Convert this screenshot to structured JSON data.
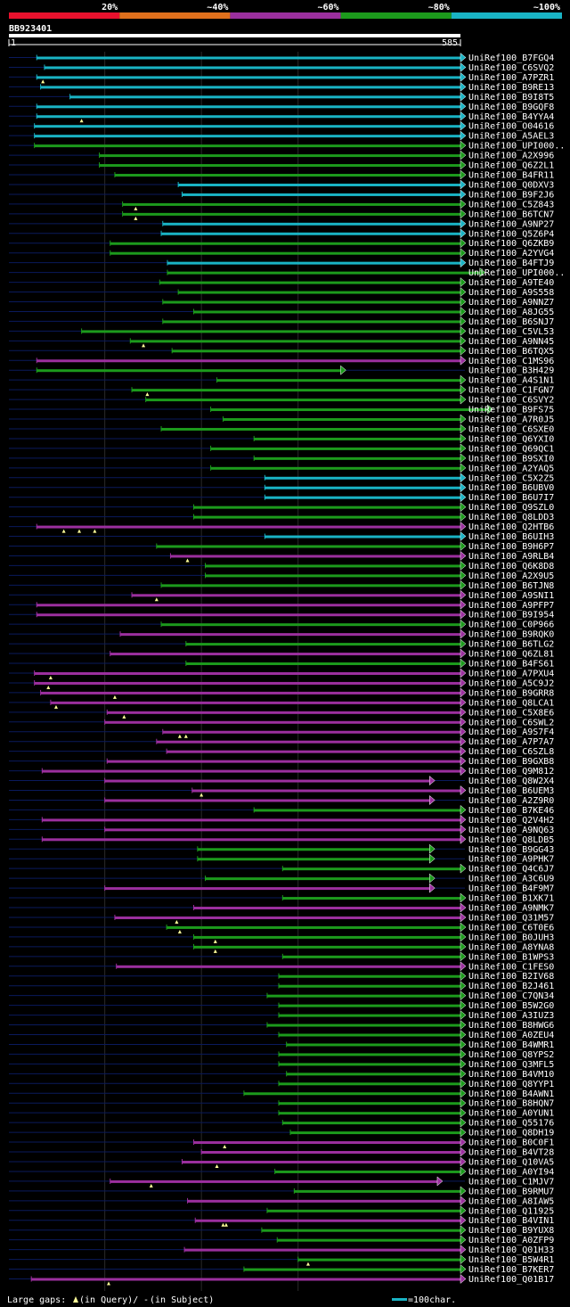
{
  "chart_data": {
    "type": "alignment",
    "title": "BB923401",
    "query_length": 585,
    "axis": {
      "start_label": "1",
      "end_label": "585",
      "xlim": [
        1,
        585
      ],
      "gridlines": [
        125,
        250,
        375
      ]
    },
    "legend": [
      {
        "label": "20%",
        "color": "#e8112d"
      },
      {
        "label": "~40%",
        "color": "#e0701c"
      },
      {
        "label": "~60%",
        "color": "#9b2f9e"
      },
      {
        "label": "~80%",
        "color": "#1c9a1c"
      },
      {
        "label": "~100%",
        "color": "#19b3c4"
      }
    ],
    "footer": {
      "gaps_label": "Large gaps:",
      "in_query": "(in Query)/",
      "dash": "-",
      "in_subject": "(in Subject)",
      "scale_label": "=100char."
    },
    "hits": [
      {
        "id": "UniRef100_B7FGQ4",
        "start": 37,
        "end": 585,
        "identity": 100,
        "q_gaps": []
      },
      {
        "id": "UniRef100_C6SVQ2",
        "start": 47,
        "end": 585,
        "identity": 100,
        "q_gaps": []
      },
      {
        "id": "UniRef100_A7PZR1",
        "start": 37,
        "end": 585,
        "identity": 100,
        "q_gaps": [
          45
        ]
      },
      {
        "id": "UniRef100_B9RE13",
        "start": 42,
        "end": 585,
        "identity": 100,
        "q_gaps": []
      },
      {
        "id": "UniRef100_B9I8T5",
        "start": 80,
        "end": 585,
        "identity": 100,
        "q_gaps": []
      },
      {
        "id": "UniRef100_B9GQF8",
        "start": 37,
        "end": 585,
        "identity": 100,
        "q_gaps": []
      },
      {
        "id": "UniRef100_B4YYA4",
        "start": 37,
        "end": 585,
        "identity": 100,
        "q_gaps": [
          95
        ]
      },
      {
        "id": "UniRef100_O04616",
        "start": 34,
        "end": 585,
        "identity": 100,
        "q_gaps": []
      },
      {
        "id": "UniRef100_A5AEL3",
        "start": 34,
        "end": 585,
        "identity": 100,
        "q_gaps": []
      },
      {
        "id": "UniRef100_UPI000..",
        "start": 34,
        "end": 585,
        "identity": 80,
        "q_gaps": []
      },
      {
        "id": "UniRef100_A2X996",
        "start": 118,
        "end": 585,
        "identity": 80,
        "q_gaps": []
      },
      {
        "id": "UniRef100_Q6Z2L1",
        "start": 118,
        "end": 585,
        "identity": 80,
        "q_gaps": []
      },
      {
        "id": "UniRef100_B4FR11",
        "start": 138,
        "end": 585,
        "identity": 80,
        "q_gaps": []
      },
      {
        "id": "UniRef100_Q0DXV3",
        "start": 220,
        "end": 585,
        "identity": 100,
        "q_gaps": []
      },
      {
        "id": "UniRef100_B9F2J6",
        "start": 225,
        "end": 585,
        "identity": 100,
        "q_gaps": []
      },
      {
        "id": "UniRef100_C5Z843",
        "start": 148,
        "end": 585,
        "identity": 80,
        "q_gaps": [
          165
        ]
      },
      {
        "id": "UniRef100_B6TCN7",
        "start": 148,
        "end": 585,
        "identity": 80,
        "q_gaps": [
          165
        ]
      },
      {
        "id": "UniRef100_A9NP27",
        "start": 200,
        "end": 585,
        "identity": 100,
        "q_gaps": []
      },
      {
        "id": "UniRef100_Q5Z6P4",
        "start": 198,
        "end": 585,
        "identity": 100,
        "q_gaps": []
      },
      {
        "id": "UniRef100_Q6ZKB9",
        "start": 132,
        "end": 585,
        "identity": 80,
        "q_gaps": []
      },
      {
        "id": "UniRef100_A2YVG4",
        "start": 132,
        "end": 585,
        "identity": 80,
        "q_gaps": []
      },
      {
        "id": "UniRef100_B4FTJ9",
        "start": 206,
        "end": 585,
        "identity": 100,
        "q_gaps": []
      },
      {
        "id": "UniRef100_UPI000..",
        "start": 206,
        "end": 610,
        "identity": 80,
        "q_gaps": []
      },
      {
        "id": "UniRef100_A9TE40",
        "start": 196,
        "end": 585,
        "identity": 80,
        "q_gaps": []
      },
      {
        "id": "UniRef100_A9S558",
        "start": 220,
        "end": 585,
        "identity": 80,
        "q_gaps": []
      },
      {
        "id": "UniRef100_A9NNZ7",
        "start": 200,
        "end": 585,
        "identity": 80,
        "q_gaps": []
      },
      {
        "id": "UniRef100_A8JG55",
        "start": 240,
        "end": 585,
        "identity": 80,
        "q_gaps": []
      },
      {
        "id": "UniRef100_B6SNJ7",
        "start": 200,
        "end": 585,
        "identity": 80,
        "q_gaps": []
      },
      {
        "id": "UniRef100_C5VL53",
        "start": 95,
        "end": 585,
        "identity": 80,
        "q_gaps": []
      },
      {
        "id": "UniRef100_A9NN45",
        "start": 158,
        "end": 585,
        "identity": 80,
        "q_gaps": [
          175
        ]
      },
      {
        "id": "UniRef100_B6TQX5",
        "start": 212,
        "end": 585,
        "identity": 80,
        "q_gaps": []
      },
      {
        "id": "UniRef100_C1MS96",
        "start": 37,
        "end": 585,
        "identity": 60,
        "q_gaps": []
      },
      {
        "id": "UniRef100_B3H429",
        "start": 37,
        "end": 430,
        "identity": 80,
        "q_gaps": []
      },
      {
        "id": "UniRef100_A4S1N1",
        "start": 270,
        "end": 585,
        "identity": 80,
        "q_gaps": []
      },
      {
        "id": "UniRef100_C1FGN7",
        "start": 160,
        "end": 585,
        "identity": 80,
        "q_gaps": [
          180
        ]
      },
      {
        "id": "UniRef100_C6SVY2",
        "start": 178,
        "end": 585,
        "identity": 80,
        "q_gaps": []
      },
      {
        "id": "UniRef100_B9FS75",
        "start": 262,
        "end": 620,
        "identity": 80,
        "q_gaps": []
      },
      {
        "id": "UniRef100_A7R0J5",
        "start": 278,
        "end": 585,
        "identity": 80,
        "q_gaps": []
      },
      {
        "id": "UniRef100_C6SXE0",
        "start": 198,
        "end": 585,
        "identity": 80,
        "q_gaps": []
      },
      {
        "id": "UniRef100_Q6YXI0",
        "start": 318,
        "end": 585,
        "identity": 80,
        "q_gaps": []
      },
      {
        "id": "UniRef100_Q69QC1",
        "start": 262,
        "end": 585,
        "identity": 80,
        "q_gaps": []
      },
      {
        "id": "UniRef100_B9SXI0",
        "start": 318,
        "end": 585,
        "identity": 80,
        "q_gaps": []
      },
      {
        "id": "UniRef100_A2YAQ5",
        "start": 262,
        "end": 585,
        "identity": 80,
        "q_gaps": []
      },
      {
        "id": "UniRef100_C5X2Z5",
        "start": 332,
        "end": 585,
        "identity": 100,
        "q_gaps": []
      },
      {
        "id": "UniRef100_B6UBV0",
        "start": 332,
        "end": 585,
        "identity": 100,
        "q_gaps": []
      },
      {
        "id": "UniRef100_B6U7I7",
        "start": 332,
        "end": 585,
        "identity": 100,
        "q_gaps": []
      },
      {
        "id": "UniRef100_Q9SZL0",
        "start": 240,
        "end": 585,
        "identity": 80,
        "q_gaps": []
      },
      {
        "id": "UniRef100_Q8LDD3",
        "start": 240,
        "end": 585,
        "identity": 80,
        "q_gaps": []
      },
      {
        "id": "UniRef100_Q2HTB6",
        "start": 37,
        "end": 585,
        "identity": 60,
        "q_gaps": [
          72,
          92,
          112
        ]
      },
      {
        "id": "UniRef100_B6UIH3",
        "start": 332,
        "end": 585,
        "identity": 100,
        "q_gaps": []
      },
      {
        "id": "UniRef100_B9H6P7",
        "start": 192,
        "end": 585,
        "identity": 80,
        "q_gaps": []
      },
      {
        "id": "UniRef100_A9RLB4",
        "start": 210,
        "end": 585,
        "identity": 60,
        "q_gaps": [
          232
        ]
      },
      {
        "id": "UniRef100_Q6K8D8",
        "start": 255,
        "end": 585,
        "identity": 80,
        "q_gaps": []
      },
      {
        "id": "UniRef100_A2X9U5",
        "start": 255,
        "end": 585,
        "identity": 80,
        "q_gaps": []
      },
      {
        "id": "UniRef100_B6TJN8",
        "start": 198,
        "end": 585,
        "identity": 80,
        "q_gaps": []
      },
      {
        "id": "UniRef100_A9SNI1",
        "start": 160,
        "end": 585,
        "identity": 60,
        "q_gaps": [
          192
        ]
      },
      {
        "id": "UniRef100_A9PFP7",
        "start": 37,
        "end": 585,
        "identity": 60,
        "q_gaps": []
      },
      {
        "id": "UniRef100_B9I954",
        "start": 37,
        "end": 585,
        "identity": 60,
        "q_gaps": []
      },
      {
        "id": "UniRef100_C0P966",
        "start": 198,
        "end": 585,
        "identity": 80,
        "q_gaps": []
      },
      {
        "id": "UniRef100_B9RQK0",
        "start": 145,
        "end": 585,
        "identity": 60,
        "q_gaps": []
      },
      {
        "id": "UniRef100_B6TLG2",
        "start": 230,
        "end": 585,
        "identity": 80,
        "q_gaps": []
      },
      {
        "id": "UniRef100_Q6ZL81",
        "start": 132,
        "end": 585,
        "identity": 60,
        "q_gaps": []
      },
      {
        "id": "UniRef100_B4FS61",
        "start": 230,
        "end": 585,
        "identity": 80,
        "q_gaps": []
      },
      {
        "id": "UniRef100_A7PXU4",
        "start": 34,
        "end": 585,
        "identity": 60,
        "q_gaps": [
          55
        ]
      },
      {
        "id": "UniRef100_A5C9J2",
        "start": 34,
        "end": 585,
        "identity": 60,
        "q_gaps": [
          52
        ]
      },
      {
        "id": "UniRef100_B9GRR8",
        "start": 42,
        "end": 585,
        "identity": 60,
        "q_gaps": [
          138
        ]
      },
      {
        "id": "UniRef100_Q8LCA1",
        "start": 55,
        "end": 585,
        "identity": 60,
        "q_gaps": [
          62
        ]
      },
      {
        "id": "UniRef100_C5X8E6",
        "start": 128,
        "end": 585,
        "identity": 60,
        "q_gaps": [
          150
        ]
      },
      {
        "id": "UniRef100_C6SWL2",
        "start": 125,
        "end": 585,
        "identity": 60,
        "q_gaps": []
      },
      {
        "id": "UniRef100_A9S7F4",
        "start": 200,
        "end": 585,
        "identity": 60,
        "q_gaps": [
          222,
          230
        ]
      },
      {
        "id": "UniRef100_A7P7A7",
        "start": 192,
        "end": 585,
        "identity": 60,
        "q_gaps": []
      },
      {
        "id": "UniRef100_C6SZL8",
        "start": 205,
        "end": 585,
        "identity": 60,
        "q_gaps": []
      },
      {
        "id": "UniRef100_B9GXB8",
        "start": 128,
        "end": 585,
        "identity": 60,
        "q_gaps": []
      },
      {
        "id": "UniRef100_Q9M812",
        "start": 44,
        "end": 585,
        "identity": 60,
        "q_gaps": []
      },
      {
        "id": "UniRef100_Q8W2X4",
        "start": 125,
        "end": 545,
        "identity": 60,
        "q_gaps": []
      },
      {
        "id": "UniRef100_B6UEM3",
        "start": 238,
        "end": 585,
        "identity": 60,
        "q_gaps": [
          250
        ]
      },
      {
        "id": "UniRef100_A2Z9R0",
        "start": 125,
        "end": 545,
        "identity": 60,
        "q_gaps": []
      },
      {
        "id": "UniRef100_B7KE46",
        "start": 318,
        "end": 585,
        "identity": 80,
        "q_gaps": []
      },
      {
        "id": "UniRef100_Q2V4H2",
        "start": 44,
        "end": 585,
        "identity": 60,
        "q_gaps": []
      },
      {
        "id": "UniRef100_A9NQ63",
        "start": 125,
        "end": 585,
        "identity": 60,
        "q_gaps": []
      },
      {
        "id": "UniRef100_Q8LDB5",
        "start": 44,
        "end": 585,
        "identity": 60,
        "q_gaps": []
      },
      {
        "id": "UniRef100_B9GG43",
        "start": 245,
        "end": 545,
        "identity": 80,
        "q_gaps": []
      },
      {
        "id": "UniRef100_A9PHK7",
        "start": 245,
        "end": 545,
        "identity": 80,
        "q_gaps": []
      },
      {
        "id": "UniRef100_Q4C6J7",
        "start": 355,
        "end": 585,
        "identity": 80,
        "q_gaps": []
      },
      {
        "id": "UniRef100_A3C6U9",
        "start": 255,
        "end": 545,
        "identity": 80,
        "q_gaps": []
      },
      {
        "id": "UniRef100_B4F9M7",
        "start": 125,
        "end": 545,
        "identity": 60,
        "q_gaps": []
      },
      {
        "id": "UniRef100_B1XK71",
        "start": 355,
        "end": 585,
        "identity": 80,
        "q_gaps": []
      },
      {
        "id": "UniRef100_A9NMK7",
        "start": 240,
        "end": 585,
        "identity": 60,
        "q_gaps": []
      },
      {
        "id": "UniRef100_Q31M57",
        "start": 138,
        "end": 585,
        "identity": 60,
        "q_gaps": [
          218
        ]
      },
      {
        "id": "UniRef100_C6T0E6",
        "start": 205,
        "end": 585,
        "identity": 80,
        "q_gaps": [
          222
        ]
      },
      {
        "id": "UniRef100_B0JUH3",
        "start": 240,
        "end": 585,
        "identity": 80,
        "q_gaps": [
          268
        ]
      },
      {
        "id": "UniRef100_A8YNA8",
        "start": 240,
        "end": 585,
        "identity": 80,
        "q_gaps": [
          268
        ]
      },
      {
        "id": "UniRef100_B1WPS3",
        "start": 355,
        "end": 585,
        "identity": 80,
        "q_gaps": []
      },
      {
        "id": "UniRef100_C1FES0",
        "start": 140,
        "end": 585,
        "identity": 60,
        "q_gaps": []
      },
      {
        "id": "UniRef100_B2IV68",
        "start": 350,
        "end": 585,
        "identity": 80,
        "q_gaps": []
      },
      {
        "id": "UniRef100_B2J461",
        "start": 350,
        "end": 585,
        "identity": 80,
        "q_gaps": []
      },
      {
        "id": "UniRef100_C7QN34",
        "start": 335,
        "end": 585,
        "identity": 80,
        "q_gaps": []
      },
      {
        "id": "UniRef100_B5W2G0",
        "start": 350,
        "end": 585,
        "identity": 80,
        "q_gaps": []
      },
      {
        "id": "UniRef100_A3IUZ3",
        "start": 350,
        "end": 585,
        "identity": 80,
        "q_gaps": []
      },
      {
        "id": "UniRef100_B8HWG6",
        "start": 335,
        "end": 585,
        "identity": 80,
        "q_gaps": []
      },
      {
        "id": "UniRef100_A0ZEU4",
        "start": 350,
        "end": 585,
        "identity": 80,
        "q_gaps": []
      },
      {
        "id": "UniRef100_B4WMR1",
        "start": 360,
        "end": 585,
        "identity": 80,
        "q_gaps": []
      },
      {
        "id": "UniRef100_Q8YPS2",
        "start": 350,
        "end": 585,
        "identity": 80,
        "q_gaps": []
      },
      {
        "id": "UniRef100_Q3MFL5",
        "start": 350,
        "end": 585,
        "identity": 80,
        "q_gaps": []
      },
      {
        "id": "UniRef100_B4VM10",
        "start": 360,
        "end": 585,
        "identity": 80,
        "q_gaps": []
      },
      {
        "id": "UniRef100_Q8YYP1",
        "start": 350,
        "end": 585,
        "identity": 80,
        "q_gaps": []
      },
      {
        "id": "UniRef100_B4AWN1",
        "start": 305,
        "end": 585,
        "identity": 80,
        "q_gaps": []
      },
      {
        "id": "UniRef100_B8HQN7",
        "start": 350,
        "end": 585,
        "identity": 80,
        "q_gaps": []
      },
      {
        "id": "UniRef100_A0YUN1",
        "start": 350,
        "end": 585,
        "identity": 80,
        "q_gaps": []
      },
      {
        "id": "UniRef100_Q55176",
        "start": 355,
        "end": 585,
        "identity": 80,
        "q_gaps": []
      },
      {
        "id": "UniRef100_Q8DH19",
        "start": 365,
        "end": 585,
        "identity": 80,
        "q_gaps": []
      },
      {
        "id": "UniRef100_B0C0F1",
        "start": 240,
        "end": 585,
        "identity": 60,
        "q_gaps": [
          280
        ]
      },
      {
        "id": "UniRef100_B4VT28",
        "start": 250,
        "end": 585,
        "identity": 60,
        "q_gaps": []
      },
      {
        "id": "UniRef100_Q10VA5",
        "start": 225,
        "end": 585,
        "identity": 60,
        "q_gaps": [
          270
        ]
      },
      {
        "id": "UniRef100_A0YI94",
        "start": 345,
        "end": 585,
        "identity": 80,
        "q_gaps": []
      },
      {
        "id": "UniRef100_C1MJV7",
        "start": 132,
        "end": 555,
        "identity": 60,
        "q_gaps": [
          185
        ]
      },
      {
        "id": "UniRef100_B9RMU7",
        "start": 370,
        "end": 585,
        "identity": 80,
        "q_gaps": []
      },
      {
        "id": "UniRef100_A8IAW5",
        "start": 232,
        "end": 585,
        "identity": 60,
        "q_gaps": []
      },
      {
        "id": "UniRef100_Q11925",
        "start": 335,
        "end": 585,
        "identity": 80,
        "q_gaps": []
      },
      {
        "id": "UniRef100_B4VIN1",
        "start": 242,
        "end": 585,
        "identity": 60,
        "q_gaps": [
          278,
          282
        ]
      },
      {
        "id": "UniRef100_B9YUX8",
        "start": 328,
        "end": 585,
        "identity": 80,
        "q_gaps": []
      },
      {
        "id": "UniRef100_A0ZFP9",
        "start": 348,
        "end": 585,
        "identity": 80,
        "q_gaps": []
      },
      {
        "id": "UniRef100_Q01H33",
        "start": 228,
        "end": 585,
        "identity": 60,
        "q_gaps": []
      },
      {
        "id": "UniRef100_B5W4R1",
        "start": 375,
        "end": 585,
        "identity": 80,
        "q_gaps": [
          388
        ]
      },
      {
        "id": "UniRef100_B7KER7",
        "start": 305,
        "end": 585,
        "identity": 80,
        "q_gaps": []
      },
      {
        "id": "UniRef100_Q01B17",
        "start": 30,
        "end": 585,
        "identity": 60,
        "q_gaps": [
          130
        ]
      }
    ]
  }
}
